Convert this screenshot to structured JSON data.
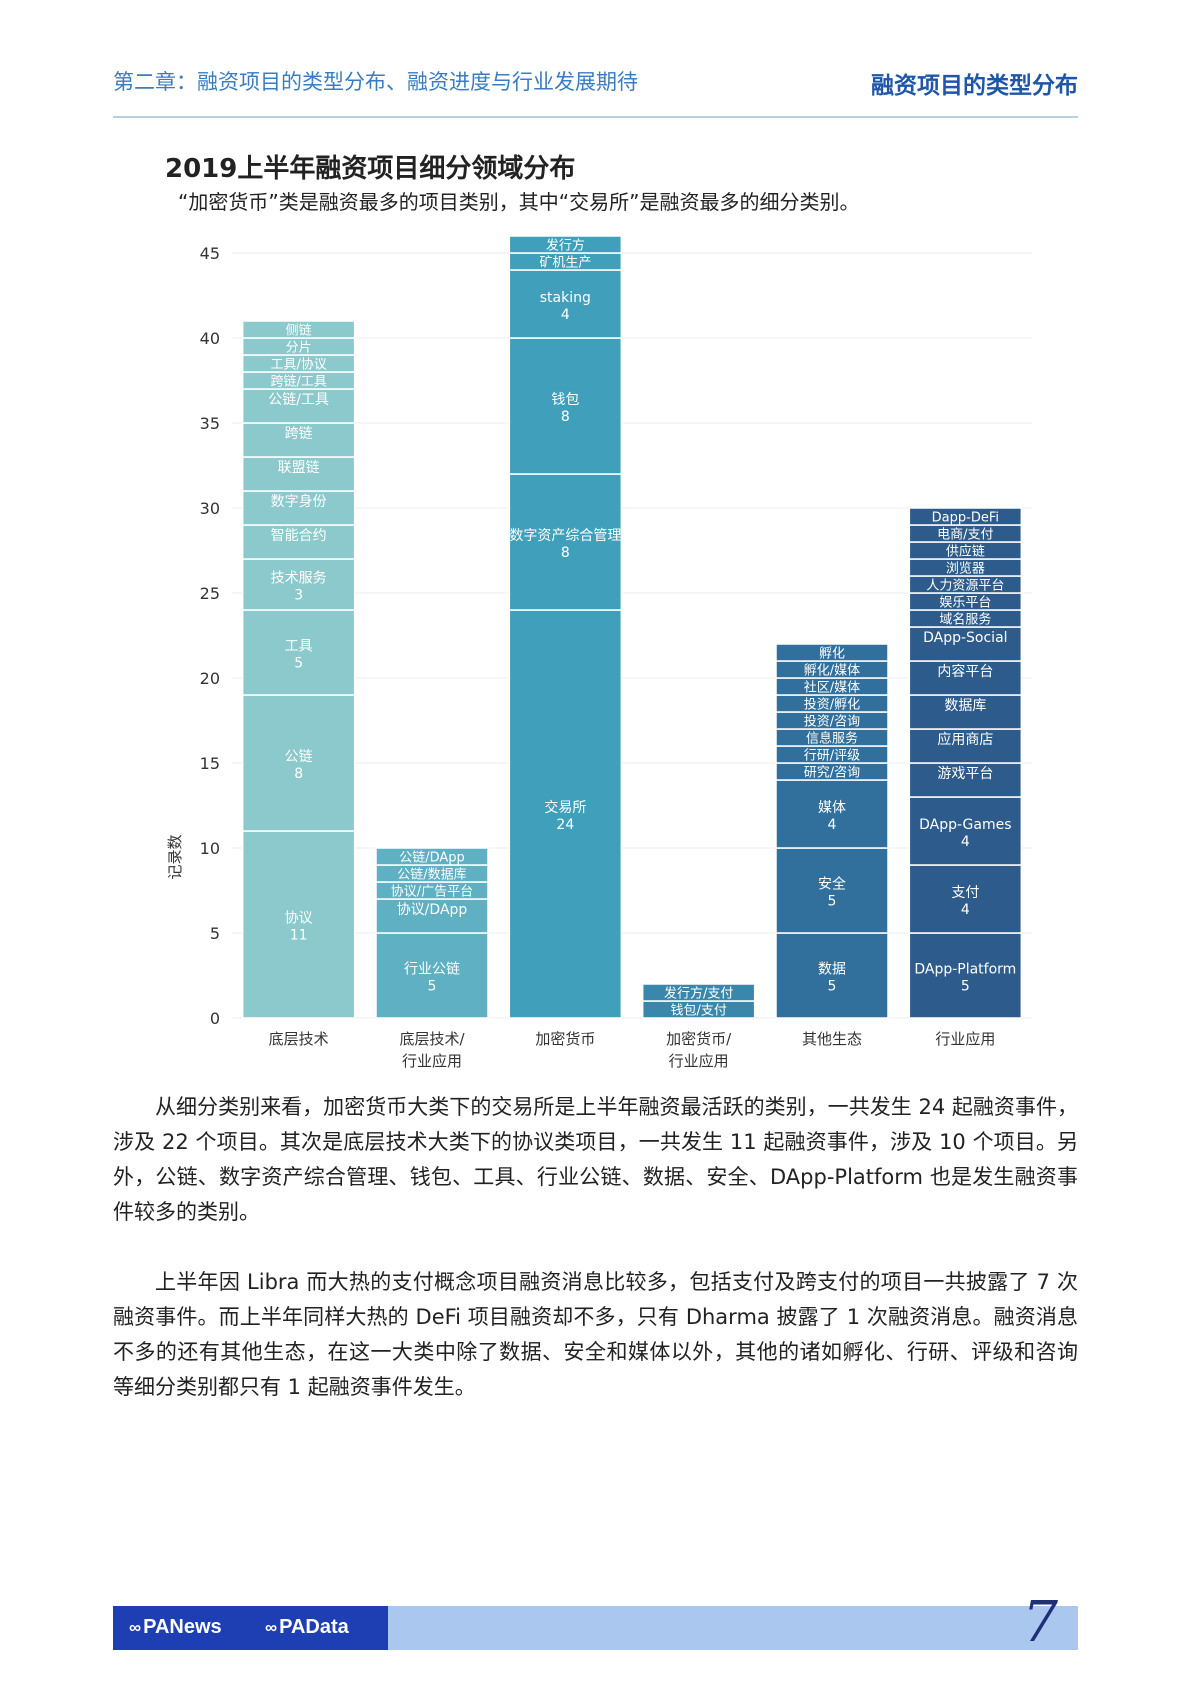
{
  "header": {
    "chapter_title": "第二章：融资项目的类型分布、融资进度与行业发展期待",
    "section_title": "融资项目的类型分布"
  },
  "chart_title": "2019上半年融资项目细分领域分布",
  "chart_subtitle": "“加密货币”类是融资最多的项目类别，其中“交易所”是融资最多的细分类别。",
  "chart_data": {
    "type": "bar",
    "stacked": true,
    "ylabel": "记录数",
    "ylim": [
      0,
      46
    ],
    "yticks": [
      0,
      5,
      10,
      15,
      20,
      25,
      30,
      35,
      40,
      45
    ],
    "grid": true,
    "categories": [
      {
        "label_lines": [
          "底层技术"
        ],
        "color": "#8bc9cc",
        "segments": [
          {
            "name": "协议",
            "value": 11
          },
          {
            "name": "公链",
            "value": 8
          },
          {
            "name": "工具",
            "value": 5
          },
          {
            "name": "技术服务",
            "value": 3
          },
          {
            "name": "智能合约",
            "value": 2
          },
          {
            "name": "数字身份",
            "value": 2
          },
          {
            "name": "联盟链",
            "value": 2
          },
          {
            "name": "跨链",
            "value": 2
          },
          {
            "name": "公链/工具",
            "value": 2
          },
          {
            "name": "跨链/工具",
            "value": 1
          },
          {
            "name": "工具/协议",
            "value": 1
          },
          {
            "name": "分片",
            "value": 1
          },
          {
            "name": "侧链",
            "value": 1
          }
        ]
      },
      {
        "label_lines": [
          "底层技术/",
          "行业应用"
        ],
        "color": "#5fb0c2",
        "segments": [
          {
            "name": "行业公链",
            "value": 5
          },
          {
            "name": "协议/DApp",
            "value": 2
          },
          {
            "name": "协议/广告平台",
            "value": 1
          },
          {
            "name": "公链/数据库",
            "value": 1
          },
          {
            "name": "公链/DApp",
            "value": 1
          }
        ]
      },
      {
        "label_lines": [
          "加密货币"
        ],
        "color": "#409fba",
        "segments": [
          {
            "name": "交易所",
            "value": 24
          },
          {
            "name": "数字资产综合管理",
            "value": 8
          },
          {
            "name": "钱包",
            "value": 8
          },
          {
            "name": "staking",
            "value": 4
          },
          {
            "name": "矿机生产",
            "value": 1
          },
          {
            "name": "发行方",
            "value": 1
          }
        ]
      },
      {
        "label_lines": [
          "加密货币/",
          "行业应用"
        ],
        "color": "#3a87ac",
        "segments": [
          {
            "name": "钱包/支付",
            "value": 1
          },
          {
            "name": "发行方/支付",
            "value": 1
          }
        ]
      },
      {
        "label_lines": [
          "其他生态"
        ],
        "color": "#31709c",
        "segments": [
          {
            "name": "数据",
            "value": 5
          },
          {
            "name": "安全",
            "value": 5
          },
          {
            "name": "媒体",
            "value": 4
          },
          {
            "name": "研究/咨询",
            "value": 1
          },
          {
            "name": "行研/评级",
            "value": 1
          },
          {
            "name": "信息服务",
            "value": 1
          },
          {
            "name": "投资/咨询",
            "value": 1
          },
          {
            "name": "投资/孵化",
            "value": 1
          },
          {
            "name": "社区/媒体",
            "value": 1
          },
          {
            "name": "孵化/媒体",
            "value": 1
          },
          {
            "name": "孵化",
            "value": 1
          }
        ]
      },
      {
        "label_lines": [
          "行业应用"
        ],
        "color": "#2d5c8c",
        "segments": [
          {
            "name": "DApp-Platform",
            "value": 5
          },
          {
            "name": "支付",
            "value": 4
          },
          {
            "name": "DApp-Games",
            "value": 4
          },
          {
            "name": "游戏平台",
            "value": 2
          },
          {
            "name": "应用商店",
            "value": 2
          },
          {
            "name": "数据库",
            "value": 2
          },
          {
            "name": "内容平台",
            "value": 2
          },
          {
            "name": "DApp-Social",
            "value": 2
          },
          {
            "name": "域名服务",
            "value": 1
          },
          {
            "name": "娱乐平台",
            "value": 1
          },
          {
            "name": "人力资源平台",
            "value": 1
          },
          {
            "name": "浏览器",
            "value": 1
          },
          {
            "name": "供应链",
            "value": 1
          },
          {
            "name": "电商/支付",
            "value": 1
          },
          {
            "name": "Dapp-DeFi",
            "value": 1
          }
        ]
      }
    ]
  },
  "paragraphs": {
    "p1": "从细分类别来看，加密货币大类下的交易所是上半年融资最活跃的类别，一共发生 24 起融资事件，涉及 22 个项目。其次是底层技术大类下的协议类项目，一共发生 11 起融资事件，涉及 10 个项目。另外，公链、数字资产综合管理、钱包、工具、行业公链、数据、安全、DApp-Platform 也是发生融资事件较多的类别。",
    "p2": "上半年因 Libra 而大热的支付概念项目融资消息比较多，包括支付及跨支付的项目一共披露了 7 次融资事件。而上半年同样大热的 DeFi 项目融资却不多，只有 Dharma 披露了 1 次融资消息。融资消息不多的还有其他生态，在这一大类中除了数据、安全和媒体以外，其他的诸如孵化、行研、评级和咨询等细分类别都只有 1 起融资事件发生。"
  },
  "footer": {
    "logo1": "PANews",
    "logo2": "PAData",
    "page_number": "7"
  }
}
